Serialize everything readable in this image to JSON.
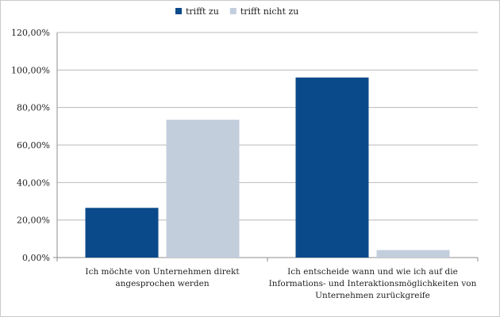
{
  "chart_data": {
    "type": "bar",
    "title": "",
    "xlabel": "",
    "ylabel": "",
    "categories": [
      [
        "Ich möchte von Unternehmen direkt",
        "angesprochen werden"
      ],
      [
        "Ich entscheide wann und wie ich auf die",
        "Informations- und Interaktionsmöglichkeiten von",
        "Unternehmen zurückgreife"
      ]
    ],
    "series": [
      {
        "name": "trifft zu",
        "values": [
          0.265,
          0.96
        ],
        "color": "#0b4a8a"
      },
      {
        "name": "trifft nicht zu",
        "values": [
          0.735,
          0.04
        ],
        "color": "#c3cedd"
      }
    ],
    "ylim": [
      0,
      1.2
    ],
    "yticks": [
      0,
      0.2,
      0.4,
      0.6,
      0.8,
      1.0,
      1.2
    ],
    "ytick_labels": [
      "0,00%",
      "20,00%",
      "40,00%",
      "60,00%",
      "80,00%",
      "100,00%",
      "120,00%"
    ],
    "grid": true,
    "legend_position": "top-left"
  }
}
